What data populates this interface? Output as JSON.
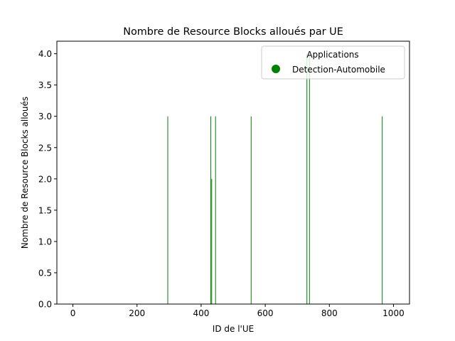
{
  "chart_data": {
    "type": "bar",
    "title": "Nombre de Resource Blocks alloués par UE",
    "xlabel": "ID de l'UE",
    "ylabel": "Nombre de Resource Blocks alloués",
    "xlim": [
      -50,
      1050
    ],
    "ylim": [
      0,
      4.2
    ],
    "x_ticks": [
      0,
      200,
      400,
      600,
      800,
      1000
    ],
    "y_ticks": [
      0.0,
      0.5,
      1.0,
      1.5,
      2.0,
      2.5,
      3.0,
      3.5,
      4.0
    ],
    "y_tick_labels": [
      "0.0",
      "0.5",
      "1.0",
      "1.5",
      "2.0",
      "2.5",
      "3.0",
      "3.5",
      "4.0"
    ],
    "grid": false,
    "legend": {
      "title": "Applications",
      "placement": "top-right",
      "entries": [
        {
          "label": "Detection-Automobile",
          "color": "#008000",
          "marker": "circle"
        }
      ]
    },
    "series": [
      {
        "name": "Detection-Automobile",
        "color": "#008000",
        "x": [
          296,
          430,
          433,
          445,
          556,
          730,
          738,
          965
        ],
        "values": [
          3,
          3,
          2,
          3,
          3,
          4,
          4,
          3
        ]
      }
    ]
  }
}
